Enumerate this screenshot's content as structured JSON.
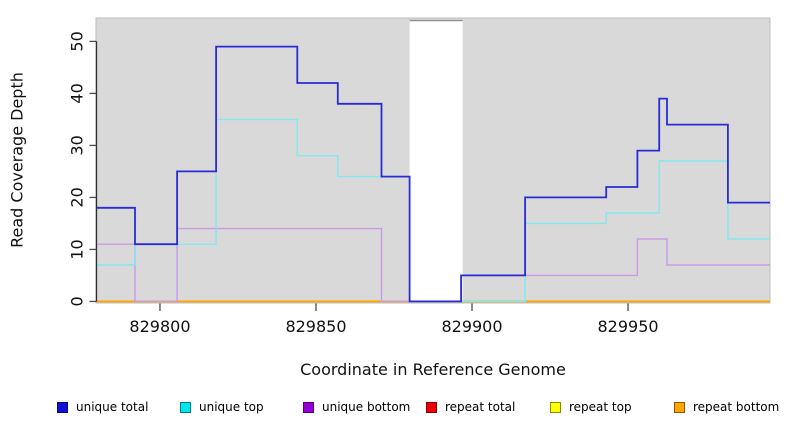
{
  "chart_data": {
    "type": "step",
    "title": "",
    "xlabel": "Coordinate in Reference Genome",
    "ylabel": "Read Coverage Depth",
    "xlim": [
      829779.5,
      829995.5
    ],
    "ylim": [
      -0.3,
      54.5
    ],
    "x_ticks": [
      829800,
      829850,
      829900,
      829950
    ],
    "y_ticks": [
      0,
      10,
      20,
      30,
      40,
      50
    ],
    "panel_bg": "#d9d9d9",
    "panel_border": "#bdbdbd",
    "grid": "off",
    "no_data_region": {
      "x_start": 829880,
      "x_end": 829897,
      "fill": "#ffffff",
      "top_edge_color": "#8f8f8f"
    },
    "series": [
      {
        "name": "repeat total",
        "color": "#ee0000",
        "line_width": 1.4,
        "points": [
          [
            829779.5,
            0
          ]
        ]
      },
      {
        "name": "repeat top",
        "color": "#ffff00",
        "line_width": 1.4,
        "points": [
          [
            829779.5,
            0
          ]
        ]
      },
      {
        "name": "repeat bottom",
        "color": "#ffa400",
        "line_width": 1.8,
        "points": [
          [
            829779.5,
            0
          ]
        ]
      },
      {
        "name": "unique bottom",
        "color": "#c79ce6",
        "line_width": 1.4,
        "points": [
          [
            829779.5,
            11
          ],
          [
            829792,
            0
          ],
          [
            829805.5,
            14
          ],
          [
            829871,
            0
          ],
          [
            829896.5,
            5
          ],
          [
            829953,
            12
          ],
          [
            829962.5,
            7
          ]
        ]
      },
      {
        "name": "unique top",
        "color": "#82e7ee",
        "line_width": 1.4,
        "points": [
          [
            829779.5,
            7
          ],
          [
            829792,
            11
          ],
          [
            829818,
            35
          ],
          [
            829844,
            28
          ],
          [
            829857,
            24
          ],
          [
            829880,
            0
          ],
          [
            829917,
            15
          ],
          [
            829943,
            17
          ],
          [
            829960,
            27
          ],
          [
            829982,
            12
          ]
        ]
      },
      {
        "name": "unique total",
        "color": "#2b2bd5",
        "line_width": 1.8,
        "points": [
          [
            829779.5,
            18
          ],
          [
            829792,
            11
          ],
          [
            829805.5,
            25
          ],
          [
            829818,
            49
          ],
          [
            829844,
            42
          ],
          [
            829857,
            38
          ],
          [
            829871,
            24
          ],
          [
            829880,
            0
          ],
          [
            829896.5,
            5
          ],
          [
            829917,
            20
          ],
          [
            829943,
            22
          ],
          [
            829953,
            29
          ],
          [
            829960,
            39
          ],
          [
            829962.5,
            34
          ],
          [
            829982,
            19
          ]
        ]
      }
    ]
  },
  "legend": {
    "items": [
      {
        "label": "unique total",
        "color": "#1111d6"
      },
      {
        "label": "unique top",
        "color": "#00e5ee"
      },
      {
        "label": "unique bottom",
        "color": "#9400d3"
      },
      {
        "label": "repeat total",
        "color": "#ee0000"
      },
      {
        "label": "repeat top",
        "color": "#ffff00"
      },
      {
        "label": "repeat bottom",
        "color": "#ffa500"
      }
    ]
  }
}
